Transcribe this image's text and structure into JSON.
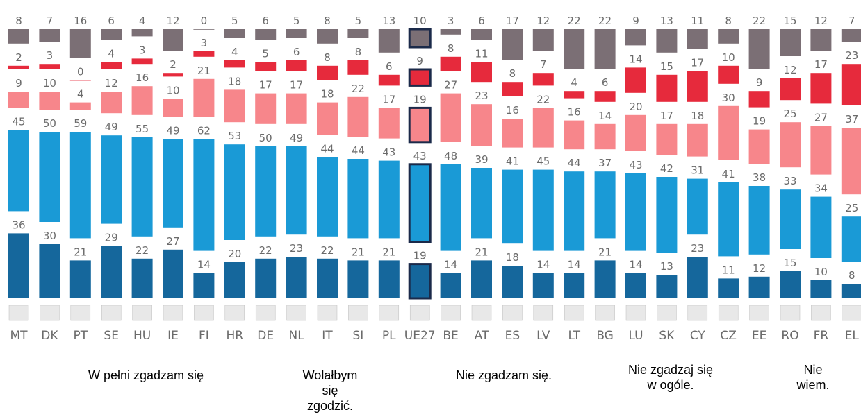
{
  "chart_data": {
    "type": "stacked-bar",
    "categories": [
      "MT",
      "DK",
      "PT",
      "SE",
      "HU",
      "IE",
      "FI",
      "HR",
      "DE",
      "NL",
      "IT",
      "SI",
      "PL",
      "UE27",
      "BE",
      "AT",
      "ES",
      "LV",
      "LT",
      "BG",
      "LU",
      "SK",
      "CY",
      "CZ",
      "EE",
      "RO",
      "FR",
      "EL"
    ],
    "series": [
      {
        "name": "W pełni zgadzam się",
        "color": "#15679c",
        "values": [
          36,
          30,
          21,
          29,
          22,
          27,
          14,
          20,
          22,
          23,
          22,
          21,
          21,
          19,
          14,
          21,
          18,
          14,
          14,
          21,
          14,
          13,
          23,
          11,
          12,
          15,
          10,
          8
        ]
      },
      {
        "name": "Wolałbym się zgodzić.",
        "color": "#1a9ad6",
        "values": [
          45,
          50,
          59,
          49,
          55,
          49,
          62,
          53,
          50,
          49,
          44,
          44,
          43,
          43,
          48,
          39,
          41,
          45,
          44,
          37,
          43,
          42,
          31,
          41,
          38,
          33,
          34,
          25
        ]
      },
      {
        "name": "Nie zgadzam się.",
        "color": "#f7868b",
        "values": [
          9,
          10,
          4,
          12,
          16,
          10,
          21,
          18,
          17,
          17,
          18,
          22,
          17,
          19,
          27,
          23,
          16,
          22,
          16,
          14,
          20,
          17,
          18,
          30,
          19,
          25,
          27,
          37
        ]
      },
      {
        "name": "Nie zgadzaj się w ogóle.",
        "color": "#e62a3c",
        "values": [
          2,
          3,
          0,
          4,
          3,
          2,
          3,
          4,
          5,
          6,
          8,
          8,
          6,
          9,
          8,
          11,
          8,
          7,
          4,
          6,
          14,
          15,
          17,
          10,
          9,
          12,
          17,
          23
        ]
      },
      {
        "name": "Nie wiem.",
        "color": "#7b6f75",
        "values": [
          8,
          7,
          16,
          6,
          4,
          12,
          0,
          5,
          6,
          5,
          8,
          5,
          13,
          10,
          3,
          6,
          17,
          12,
          22,
          22,
          9,
          13,
          11,
          8,
          22,
          15,
          12,
          7
        ]
      }
    ],
    "highlight": "UE27"
  }
}
